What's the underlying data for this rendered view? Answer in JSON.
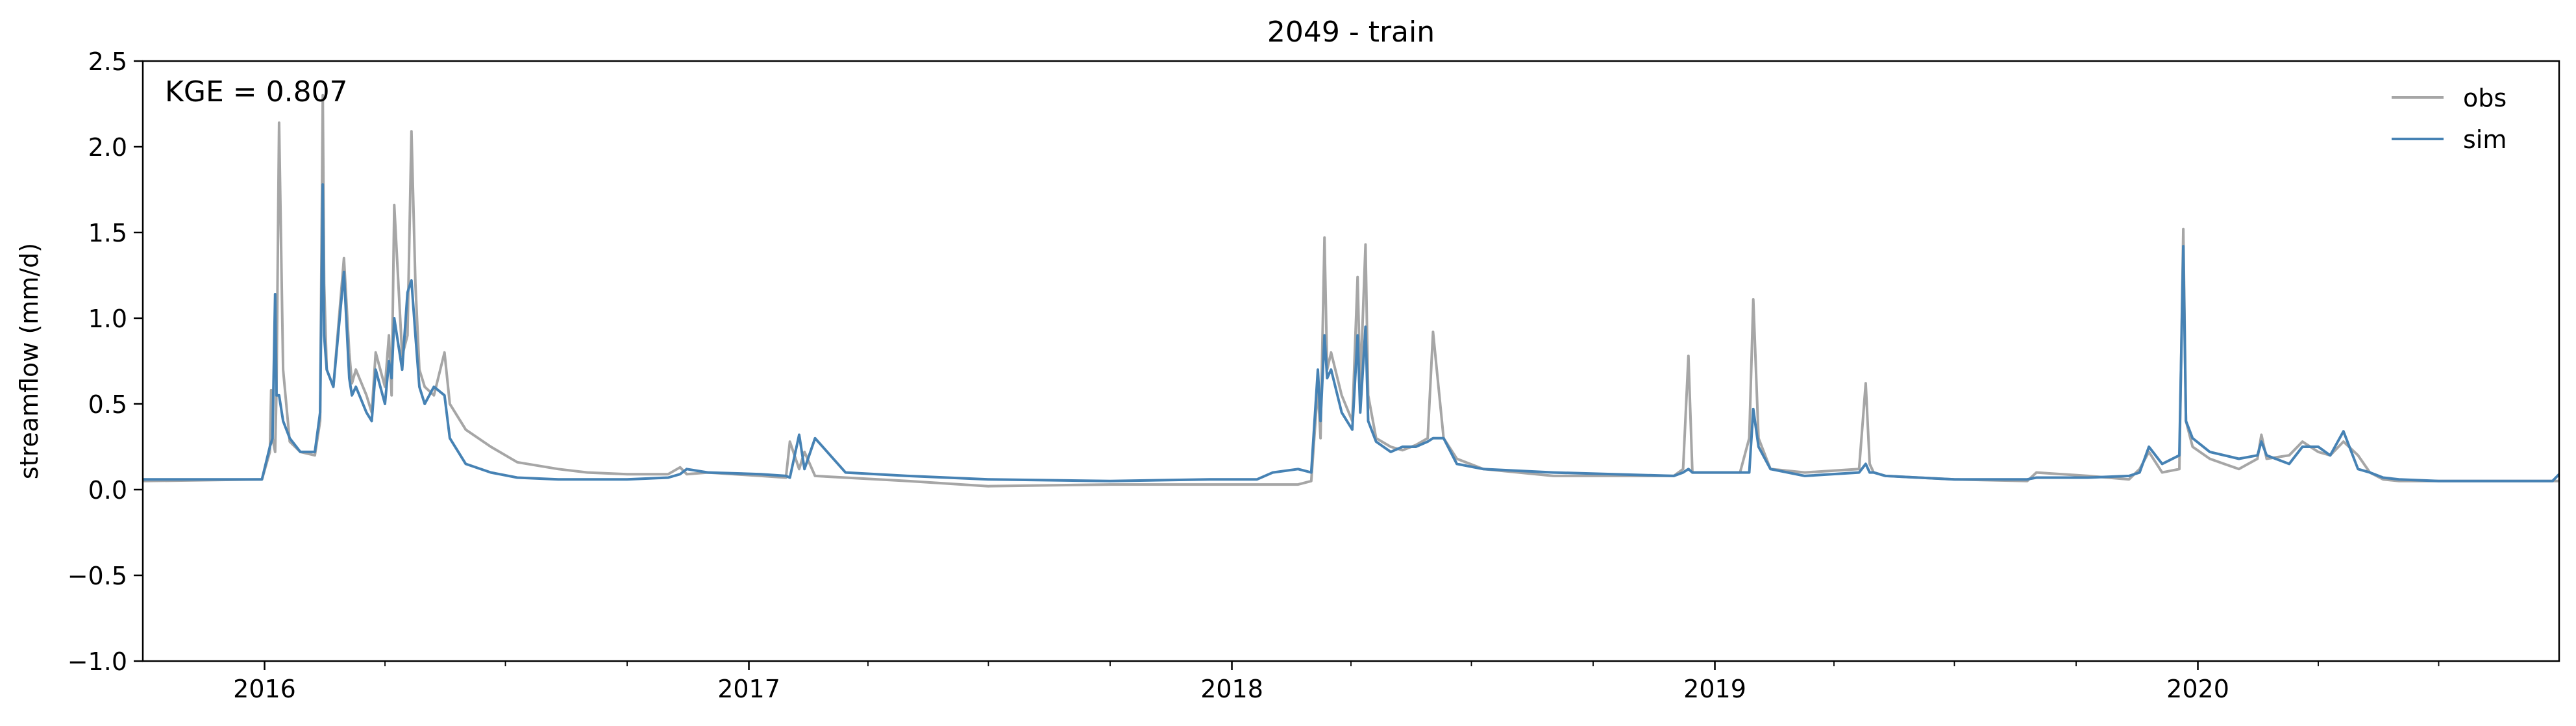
{
  "chart_data": {
    "type": "line",
    "title": "2049 - train",
    "xlabel": "",
    "ylabel": "streamflow (mm/d)",
    "annotation": "KGE = 0.807",
    "xlim": [
      "2015-10-01",
      "2020-09-30"
    ],
    "ylim": [
      -1.0,
      2.5
    ],
    "y_ticks": [
      -1.0,
      -0.5,
      0.0,
      0.5,
      1.0,
      1.5,
      2.0,
      2.5
    ],
    "y_tick_labels": [
      "−1.0",
      "−0.5",
      "0.0",
      "0.5",
      "1.0",
      "1.5",
      "2.0",
      "2.5"
    ],
    "x_ticks": [
      "2016-01-01",
      "2017-01-01",
      "2018-01-01",
      "2019-01-01",
      "2020-01-01"
    ],
    "x_tick_labels": [
      "2016",
      "2017",
      "2018",
      "2019",
      "2020"
    ],
    "grid": false,
    "legend_position": "top-right",
    "series": [
      {
        "name": "obs",
        "color": "#a6a6a6",
        "x": [
          "2015-10-01",
          "2015-12-30",
          "2016-01-05",
          "2016-01-06",
          "2016-01-07",
          "2016-01-09",
          "2016-01-10",
          "2016-01-12",
          "2016-01-15",
          "2016-01-20",
          "2016-01-28",
          "2016-02-08",
          "2016-02-12",
          "2016-02-14",
          "2016-02-15",
          "2016-02-17",
          "2016-02-22",
          "2016-03-01",
          "2016-03-05",
          "2016-03-07",
          "2016-03-10",
          "2016-03-18",
          "2016-03-22",
          "2016-03-25",
          "2016-04-01",
          "2016-04-04",
          "2016-04-06",
          "2016-04-08",
          "2016-04-14",
          "2016-04-18",
          "2016-04-21",
          "2016-04-24",
          "2016-04-27",
          "2016-05-01",
          "2016-05-08",
          "2016-05-16",
          "2016-05-20",
          "2016-06-01",
          "2016-06-20",
          "2016-07-10",
          "2016-08-10",
          "2016-09-01",
          "2016-10-01",
          "2016-11-01",
          "2016-11-10",
          "2016-11-15",
          "2016-12-01",
          "2017-01-10",
          "2017-01-29",
          "2017-02-01",
          "2017-02-08",
          "2017-02-12",
          "2017-02-20",
          "2017-03-15",
          "2017-05-01",
          "2017-07-01",
          "2017-10-01",
          "2017-12-15",
          "2018-02-01",
          "2018-02-20",
          "2018-03-02",
          "2018-03-07",
          "2018-03-09",
          "2018-03-12",
          "2018-03-14",
          "2018-03-17",
          "2018-03-25",
          "2018-04-02",
          "2018-04-06",
          "2018-04-08",
          "2018-04-12",
          "2018-04-14",
          "2018-04-20",
          "2018-05-01",
          "2018-05-10",
          "2018-05-20",
          "2018-05-29",
          "2018-06-02",
          "2018-06-10",
          "2018-06-20",
          "2018-07-10",
          "2018-09-01",
          "2018-12-01",
          "2018-12-08",
          "2018-12-12",
          "2018-12-15",
          "2019-01-20",
          "2019-01-27",
          "2019-01-30",
          "2019-02-03",
          "2019-02-12",
          "2019-03-10",
          "2019-04-20",
          "2019-04-25",
          "2019-04-28",
          "2019-05-01",
          "2019-05-10",
          "2019-07-01",
          "2019-08-25",
          "2019-09-01",
          "2019-10-10",
          "2019-11-10",
          "2019-11-18",
          "2019-11-25",
          "2019-12-05",
          "2019-12-18",
          "2019-12-21",
          "2019-12-23",
          "2019-12-28",
          "2020-01-10",
          "2020-02-01",
          "2020-02-15",
          "2020-02-18",
          "2020-02-22",
          "2020-03-10",
          "2020-03-20",
          "2020-04-01",
          "2020-04-10",
          "2020-04-20",
          "2020-05-01",
          "2020-05-10",
          "2020-05-20",
          "2020-06-01",
          "2020-07-01",
          "2020-09-30"
        ],
        "y": [
          0.05,
          0.06,
          0.22,
          0.58,
          0.3,
          0.22,
          0.58,
          2.14,
          0.7,
          0.28,
          0.22,
          0.2,
          0.4,
          2.3,
          1.2,
          0.7,
          0.6,
          1.35,
          0.8,
          0.62,
          0.7,
          0.55,
          0.45,
          0.8,
          0.6,
          0.9,
          0.55,
          1.66,
          0.78,
          0.9,
          2.09,
          1.2,
          0.7,
          0.6,
          0.55,
          0.8,
          0.5,
          0.35,
          0.25,
          0.16,
          0.12,
          0.1,
          0.09,
          0.09,
          0.13,
          0.09,
          0.1,
          0.08,
          0.07,
          0.28,
          0.12,
          0.22,
          0.08,
          0.07,
          0.05,
          0.02,
          0.03,
          0.03,
          0.03,
          0.03,
          0.05,
          0.6,
          0.3,
          1.47,
          0.7,
          0.8,
          0.55,
          0.4,
          1.24,
          0.6,
          1.43,
          0.55,
          0.3,
          0.25,
          0.23,
          0.26,
          0.3,
          0.92,
          0.3,
          0.18,
          0.12,
          0.08,
          0.08,
          0.12,
          0.78,
          0.1,
          0.1,
          0.3,
          1.11,
          0.3,
          0.12,
          0.1,
          0.12,
          0.62,
          0.15,
          0.1,
          0.08,
          0.06,
          0.05,
          0.1,
          0.08,
          0.06,
          0.12,
          0.22,
          0.1,
          0.12,
          1.52,
          0.4,
          0.25,
          0.18,
          0.12,
          0.18,
          0.32,
          0.18,
          0.2,
          0.28,
          0.22,
          0.2,
          0.28,
          0.2,
          0.1,
          0.06,
          0.05,
          0.05,
          0.05
        ]
      },
      {
        "name": "sim",
        "color": "#4682b4",
        "x": [
          "2015-10-01",
          "2015-12-30",
          "2016-01-05",
          "2016-01-07",
          "2016-01-09",
          "2016-01-10",
          "2016-01-12",
          "2016-01-15",
          "2016-01-20",
          "2016-01-28",
          "2016-02-08",
          "2016-02-12",
          "2016-02-14",
          "2016-02-15",
          "2016-02-17",
          "2016-02-22",
          "2016-03-01",
          "2016-03-05",
          "2016-03-07",
          "2016-03-10",
          "2016-03-18",
          "2016-03-22",
          "2016-03-25",
          "2016-04-01",
          "2016-04-04",
          "2016-04-06",
          "2016-04-08",
          "2016-04-14",
          "2016-04-18",
          "2016-04-21",
          "2016-04-24",
          "2016-04-27",
          "2016-05-01",
          "2016-05-08",
          "2016-05-16",
          "2016-05-20",
          "2016-06-01",
          "2016-06-20",
          "2016-07-10",
          "2016-08-10",
          "2016-09-01",
          "2016-10-01",
          "2016-11-01",
          "2016-11-10",
          "2016-11-15",
          "2016-12-01",
          "2017-01-10",
          "2017-01-29",
          "2017-02-01",
          "2017-02-08",
          "2017-02-12",
          "2017-02-20",
          "2017-03-15",
          "2017-05-01",
          "2017-07-01",
          "2017-10-01",
          "2017-12-15",
          "2018-01-20",
          "2018-02-01",
          "2018-02-20",
          "2018-03-02",
          "2018-03-07",
          "2018-03-09",
          "2018-03-12",
          "2018-03-14",
          "2018-03-17",
          "2018-03-25",
          "2018-04-02",
          "2018-04-06",
          "2018-04-08",
          "2018-04-12",
          "2018-04-14",
          "2018-04-20",
          "2018-05-01",
          "2018-05-10",
          "2018-05-20",
          "2018-05-29",
          "2018-06-02",
          "2018-06-10",
          "2018-06-20",
          "2018-07-10",
          "2018-09-01",
          "2018-12-01",
          "2018-12-08",
          "2018-12-12",
          "2018-12-15",
          "2019-01-20",
          "2019-01-27",
          "2019-01-30",
          "2019-02-03",
          "2019-02-12",
          "2019-03-10",
          "2019-04-20",
          "2019-04-25",
          "2019-04-28",
          "2019-05-01",
          "2019-05-10",
          "2019-07-01",
          "2019-08-25",
          "2019-09-01",
          "2019-10-10",
          "2019-11-10",
          "2019-11-18",
          "2019-11-25",
          "2019-12-05",
          "2019-12-18",
          "2019-12-21",
          "2019-12-23",
          "2019-12-28",
          "2020-01-10",
          "2020-02-01",
          "2020-02-15",
          "2020-02-18",
          "2020-02-22",
          "2020-03-10",
          "2020-03-20",
          "2020-04-01",
          "2020-04-10",
          "2020-04-20",
          "2020-05-01",
          "2020-05-10",
          "2020-05-20",
          "2020-06-01",
          "2020-07-01",
          "2020-09-25",
          "2020-09-30"
        ],
        "y": [
          0.06,
          0.06,
          0.25,
          0.3,
          1.14,
          0.55,
          0.55,
          0.4,
          0.3,
          0.22,
          0.22,
          0.45,
          1.78,
          0.9,
          0.7,
          0.6,
          1.27,
          0.65,
          0.55,
          0.6,
          0.45,
          0.4,
          0.7,
          0.5,
          0.75,
          0.65,
          1.0,
          0.7,
          1.15,
          1.22,
          0.9,
          0.6,
          0.5,
          0.6,
          0.55,
          0.3,
          0.15,
          0.1,
          0.07,
          0.06,
          0.06,
          0.06,
          0.07,
          0.09,
          0.12,
          0.1,
          0.09,
          0.08,
          0.07,
          0.32,
          0.12,
          0.3,
          0.1,
          0.08,
          0.06,
          0.05,
          0.06,
          0.06,
          0.1,
          0.12,
          0.1,
          0.7,
          0.4,
          0.9,
          0.65,
          0.7,
          0.45,
          0.35,
          0.9,
          0.45,
          0.95,
          0.4,
          0.28,
          0.22,
          0.25,
          0.25,
          0.28,
          0.3,
          0.3,
          0.15,
          0.12,
          0.1,
          0.08,
          0.1,
          0.12,
          0.1,
          0.1,
          0.1,
          0.47,
          0.25,
          0.12,
          0.08,
          0.1,
          0.15,
          0.1,
          0.1,
          0.08,
          0.06,
          0.06,
          0.07,
          0.07,
          0.08,
          0.1,
          0.25,
          0.15,
          0.2,
          1.42,
          0.4,
          0.3,
          0.22,
          0.18,
          0.2,
          0.28,
          0.2,
          0.15,
          0.25,
          0.25,
          0.2,
          0.34,
          0.12,
          0.1,
          0.07,
          0.06,
          0.05,
          0.05,
          0.09
        ]
      }
    ]
  }
}
